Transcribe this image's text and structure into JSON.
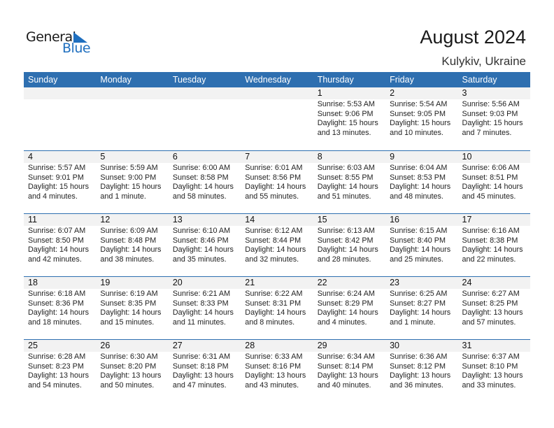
{
  "logo": {
    "line1": "General",
    "line2": "Blue"
  },
  "title": "August 2024",
  "location": "Kulykiv, Ukraine",
  "colors": {
    "header": "#2e6fb0",
    "band": "#f2f2f2",
    "brand": "#1f6fbf"
  },
  "days": [
    "Sunday",
    "Monday",
    "Tuesday",
    "Wednesday",
    "Thursday",
    "Friday",
    "Saturday"
  ],
  "weeks": [
    [
      null,
      null,
      null,
      null,
      {
        "d": "1",
        "sr": "Sunrise: 5:53 AM",
        "ss": "Sunset: 9:06 PM",
        "dl": "Daylight: 15 hours",
        "dm": "and 13 minutes."
      },
      {
        "d": "2",
        "sr": "Sunrise: 5:54 AM",
        "ss": "Sunset: 9:05 PM",
        "dl": "Daylight: 15 hours",
        "dm": "and 10 minutes."
      },
      {
        "d": "3",
        "sr": "Sunrise: 5:56 AM",
        "ss": "Sunset: 9:03 PM",
        "dl": "Daylight: 15 hours",
        "dm": "and 7 minutes."
      }
    ],
    [
      {
        "d": "4",
        "sr": "Sunrise: 5:57 AM",
        "ss": "Sunset: 9:01 PM",
        "dl": "Daylight: 15 hours",
        "dm": "and 4 minutes."
      },
      {
        "d": "5",
        "sr": "Sunrise: 5:59 AM",
        "ss": "Sunset: 9:00 PM",
        "dl": "Daylight: 15 hours",
        "dm": "and 1 minute."
      },
      {
        "d": "6",
        "sr": "Sunrise: 6:00 AM",
        "ss": "Sunset: 8:58 PM",
        "dl": "Daylight: 14 hours",
        "dm": "and 58 minutes."
      },
      {
        "d": "7",
        "sr": "Sunrise: 6:01 AM",
        "ss": "Sunset: 8:56 PM",
        "dl": "Daylight: 14 hours",
        "dm": "and 55 minutes."
      },
      {
        "d": "8",
        "sr": "Sunrise: 6:03 AM",
        "ss": "Sunset: 8:55 PM",
        "dl": "Daylight: 14 hours",
        "dm": "and 51 minutes."
      },
      {
        "d": "9",
        "sr": "Sunrise: 6:04 AM",
        "ss": "Sunset: 8:53 PM",
        "dl": "Daylight: 14 hours",
        "dm": "and 48 minutes."
      },
      {
        "d": "10",
        "sr": "Sunrise: 6:06 AM",
        "ss": "Sunset: 8:51 PM",
        "dl": "Daylight: 14 hours",
        "dm": "and 45 minutes."
      }
    ],
    [
      {
        "d": "11",
        "sr": "Sunrise: 6:07 AM",
        "ss": "Sunset: 8:50 PM",
        "dl": "Daylight: 14 hours",
        "dm": "and 42 minutes."
      },
      {
        "d": "12",
        "sr": "Sunrise: 6:09 AM",
        "ss": "Sunset: 8:48 PM",
        "dl": "Daylight: 14 hours",
        "dm": "and 38 minutes."
      },
      {
        "d": "13",
        "sr": "Sunrise: 6:10 AM",
        "ss": "Sunset: 8:46 PM",
        "dl": "Daylight: 14 hours",
        "dm": "and 35 minutes."
      },
      {
        "d": "14",
        "sr": "Sunrise: 6:12 AM",
        "ss": "Sunset: 8:44 PM",
        "dl": "Daylight: 14 hours",
        "dm": "and 32 minutes."
      },
      {
        "d": "15",
        "sr": "Sunrise: 6:13 AM",
        "ss": "Sunset: 8:42 PM",
        "dl": "Daylight: 14 hours",
        "dm": "and 28 minutes."
      },
      {
        "d": "16",
        "sr": "Sunrise: 6:15 AM",
        "ss": "Sunset: 8:40 PM",
        "dl": "Daylight: 14 hours",
        "dm": "and 25 minutes."
      },
      {
        "d": "17",
        "sr": "Sunrise: 6:16 AM",
        "ss": "Sunset: 8:38 PM",
        "dl": "Daylight: 14 hours",
        "dm": "and 22 minutes."
      }
    ],
    [
      {
        "d": "18",
        "sr": "Sunrise: 6:18 AM",
        "ss": "Sunset: 8:36 PM",
        "dl": "Daylight: 14 hours",
        "dm": "and 18 minutes."
      },
      {
        "d": "19",
        "sr": "Sunrise: 6:19 AM",
        "ss": "Sunset: 8:35 PM",
        "dl": "Daylight: 14 hours",
        "dm": "and 15 minutes."
      },
      {
        "d": "20",
        "sr": "Sunrise: 6:21 AM",
        "ss": "Sunset: 8:33 PM",
        "dl": "Daylight: 14 hours",
        "dm": "and 11 minutes."
      },
      {
        "d": "21",
        "sr": "Sunrise: 6:22 AM",
        "ss": "Sunset: 8:31 PM",
        "dl": "Daylight: 14 hours",
        "dm": "and 8 minutes."
      },
      {
        "d": "22",
        "sr": "Sunrise: 6:24 AM",
        "ss": "Sunset: 8:29 PM",
        "dl": "Daylight: 14 hours",
        "dm": "and 4 minutes."
      },
      {
        "d": "23",
        "sr": "Sunrise: 6:25 AM",
        "ss": "Sunset: 8:27 PM",
        "dl": "Daylight: 14 hours",
        "dm": "and 1 minute."
      },
      {
        "d": "24",
        "sr": "Sunrise: 6:27 AM",
        "ss": "Sunset: 8:25 PM",
        "dl": "Daylight: 13 hours",
        "dm": "and 57 minutes."
      }
    ],
    [
      {
        "d": "25",
        "sr": "Sunrise: 6:28 AM",
        "ss": "Sunset: 8:23 PM",
        "dl": "Daylight: 13 hours",
        "dm": "and 54 minutes."
      },
      {
        "d": "26",
        "sr": "Sunrise: 6:30 AM",
        "ss": "Sunset: 8:20 PM",
        "dl": "Daylight: 13 hours",
        "dm": "and 50 minutes."
      },
      {
        "d": "27",
        "sr": "Sunrise: 6:31 AM",
        "ss": "Sunset: 8:18 PM",
        "dl": "Daylight: 13 hours",
        "dm": "and 47 minutes."
      },
      {
        "d": "28",
        "sr": "Sunrise: 6:33 AM",
        "ss": "Sunset: 8:16 PM",
        "dl": "Daylight: 13 hours",
        "dm": "and 43 minutes."
      },
      {
        "d": "29",
        "sr": "Sunrise: 6:34 AM",
        "ss": "Sunset: 8:14 PM",
        "dl": "Daylight: 13 hours",
        "dm": "and 40 minutes."
      },
      {
        "d": "30",
        "sr": "Sunrise: 6:36 AM",
        "ss": "Sunset: 8:12 PM",
        "dl": "Daylight: 13 hours",
        "dm": "and 36 minutes."
      },
      {
        "d": "31",
        "sr": "Sunrise: 6:37 AM",
        "ss": "Sunset: 8:10 PM",
        "dl": "Daylight: 13 hours",
        "dm": "and 33 minutes."
      }
    ]
  ]
}
